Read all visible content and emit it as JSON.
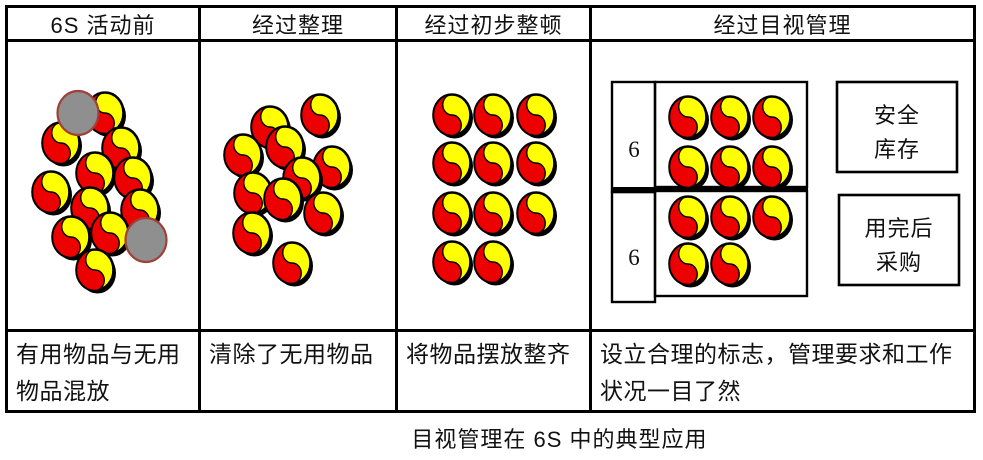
{
  "caption": "目视管理在 6S 中的典型应用",
  "colors": {
    "item_red": "#ec0000",
    "item_yellow": "#ffff00",
    "item_outline": "#000000",
    "unused_gray": "#8f8f8f",
    "unused_outline": "#a04038",
    "border": "#000000"
  },
  "table": {
    "columns": [
      {
        "header": "6S 活动前",
        "description": "有用物品与无用物品混放"
      },
      {
        "header": "经过整理",
        "description": "清除了无用物品"
      },
      {
        "header": "经过初步整顿",
        "description": "将物品摆放整齐"
      },
      {
        "header": "经过目视管理",
        "description": "设立合理的标志，管理要求和工作状况一目了然"
      }
    ]
  },
  "panels": {
    "before_6s": {
      "items": [
        [
          97,
          71
        ],
        [
          53,
          101
        ],
        [
          113,
          106
        ],
        [
          87,
          131
        ],
        [
          125,
          136
        ],
        [
          43,
          150
        ],
        [
          82,
          166
        ],
        [
          132,
          168
        ],
        [
          102,
          191
        ],
        [
          63,
          195
        ],
        [
          87,
          228
        ]
      ],
      "unused_items": [
        [
          70,
          71
        ],
        [
          138,
          198
        ]
      ]
    },
    "after_sorting": {
      "items": [
        [
          119,
          73
        ],
        [
          69,
          85
        ],
        [
          84,
          105
        ],
        [
          42,
          113
        ],
        [
          131,
          125
        ],
        [
          101,
          136
        ],
        [
          52,
          151
        ],
        [
          82,
          157
        ],
        [
          122,
          171
        ],
        [
          51,
          191
        ],
        [
          91,
          221
        ]
      ]
    },
    "after_preliminary_arrangement": {
      "items": [
        [
          54,
          73
        ],
        [
          95,
          73
        ],
        [
          138,
          73
        ],
        [
          54,
          121
        ],
        [
          95,
          121
        ],
        [
          138,
          121
        ],
        [
          54,
          171
        ],
        [
          95,
          171
        ],
        [
          138,
          171
        ],
        [
          54,
          220
        ],
        [
          95,
          220
        ]
      ]
    },
    "visual_management": {
      "shelves": [
        {
          "quantity": "6",
          "items": [
            [
              96,
              75
            ],
            [
              138,
              75
            ],
            [
              180,
              75
            ],
            [
              96,
              125
            ],
            [
              138,
              125
            ],
            [
              180,
              125
            ]
          ]
        },
        {
          "quantity": "6",
          "items": [
            [
              96,
              175
            ],
            [
              138,
              175
            ],
            [
              180,
              175
            ],
            [
              96,
              222
            ],
            [
              138,
              222
            ]
          ]
        }
      ],
      "signs": [
        {
          "lines": [
            "安全",
            "库存"
          ]
        },
        {
          "lines": [
            "用完后",
            "采购"
          ]
        }
      ]
    }
  }
}
